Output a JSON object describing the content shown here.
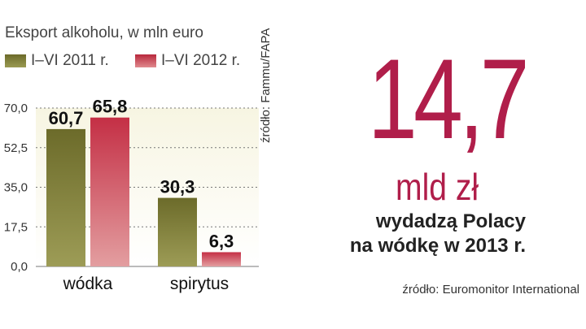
{
  "chart_data": {
    "type": "bar",
    "title": "Eksport alkoholu, w mln euro",
    "categories": [
      "wódka",
      "spirytus"
    ],
    "series": [
      {
        "name": "I–VI 2011 r.",
        "values": [
          60.7,
          30.3
        ],
        "labels": [
          "60,7",
          "30,3"
        ],
        "color": "#76752f"
      },
      {
        "name": "I–VI 2012 r.",
        "values": [
          65.8,
          6.3
        ],
        "labels": [
          "65,8",
          "6,3"
        ],
        "color": "#c42f45"
      }
    ],
    "yticks": [
      0,
      17.5,
      35,
      52.5,
      70
    ],
    "ytick_labels": [
      "0,0",
      "17,5",
      "35,0",
      "52,5",
      "70,0"
    ],
    "ylim": [
      0,
      70
    ],
    "grid": true,
    "legend": "top-left",
    "source": "źródło: Fammu/FAPA"
  },
  "highlight": {
    "number": "14,7",
    "unit": "mld zł",
    "caption_line1": "wydadzą Polacy",
    "caption_line2": "na wódkę w 2013 r.",
    "source": "źródło: Euromonitor International",
    "color": "#b01e4a"
  }
}
